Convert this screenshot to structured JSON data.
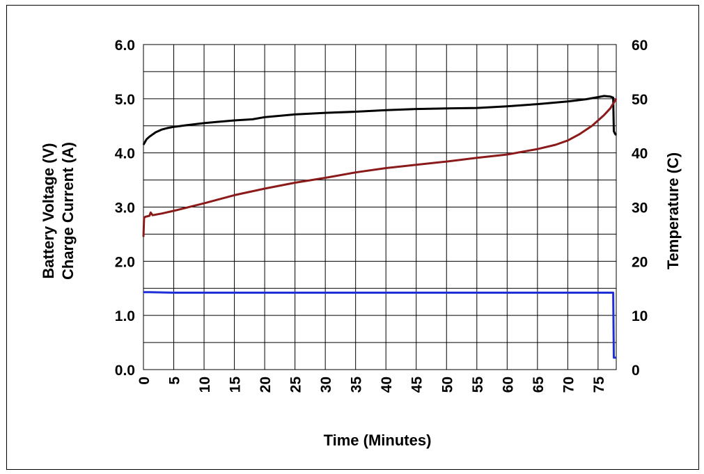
{
  "chart_data": {
    "type": "line",
    "title": "",
    "xlabel": "Time (Minutes)",
    "ylabel_left": [
      "Battery Voltage (V)",
      "Charge Current (A)"
    ],
    "ylabel_right": "Temperature (C)",
    "xlim": [
      0,
      78
    ],
    "ylim_left": [
      0,
      6
    ],
    "ylim_right": [
      0,
      60
    ],
    "x_ticks": [
      "0",
      "5",
      "10",
      "15",
      "20",
      "25",
      "30",
      "35",
      "40",
      "45",
      "50",
      "55",
      "60",
      "65",
      "70",
      "75"
    ],
    "y_left_ticks": [
      "0.0",
      "1.0",
      "2.0",
      "3.0",
      "4.0",
      "5.0",
      "6.0"
    ],
    "y_right_ticks": [
      "0",
      "10",
      "20",
      "30",
      "40",
      "50",
      "60"
    ],
    "grid": true,
    "legend": "none",
    "series": [
      {
        "color": "#000000",
        "axis": "left",
        "x": [
          0,
          0.5,
          1,
          2,
          3,
          4,
          5,
          7,
          10,
          12,
          15,
          18,
          20,
          25,
          30,
          35,
          40,
          45,
          50,
          55,
          60,
          65,
          70,
          73,
          75,
          76,
          77,
          77.5,
          77.6,
          77.8,
          78
        ],
        "y": [
          4.15,
          4.25,
          4.3,
          4.38,
          4.43,
          4.46,
          4.48,
          4.51,
          4.55,
          4.57,
          4.6,
          4.62,
          4.66,
          4.71,
          4.74,
          4.76,
          4.79,
          4.81,
          4.82,
          4.83,
          4.86,
          4.9,
          4.95,
          4.99,
          5.03,
          5.05,
          5.04,
          5.02,
          4.4,
          4.35,
          4.33
        ]
      },
      {
        "color": "#8b1a1a",
        "axis": "right",
        "x": [
          0,
          0.1,
          0.3,
          1,
          1.2,
          1.5,
          3,
          5,
          10,
          15,
          20,
          25,
          30,
          35,
          40,
          45,
          50,
          55,
          60,
          65,
          68,
          70,
          72,
          74,
          76,
          77,
          78
        ],
        "y": [
          24.5,
          28,
          28.2,
          28.4,
          29,
          28.5,
          28.8,
          29.3,
          30.7,
          32.2,
          33.4,
          34.5,
          35.4,
          36.4,
          37.2,
          37.8,
          38.4,
          39.1,
          39.7,
          40.7,
          41.5,
          42.3,
          43.5,
          45.0,
          47.0,
          48.2,
          50.0
        ]
      },
      {
        "color": "#1f2fd6",
        "axis": "left",
        "x": [
          0,
          1,
          5,
          10,
          20,
          30,
          40,
          50,
          60,
          70,
          77.5,
          77.6,
          78
        ],
        "y": [
          1.43,
          1.43,
          1.42,
          1.42,
          1.42,
          1.42,
          1.42,
          1.42,
          1.42,
          1.42,
          1.42,
          0.22,
          0.22
        ]
      }
    ]
  }
}
